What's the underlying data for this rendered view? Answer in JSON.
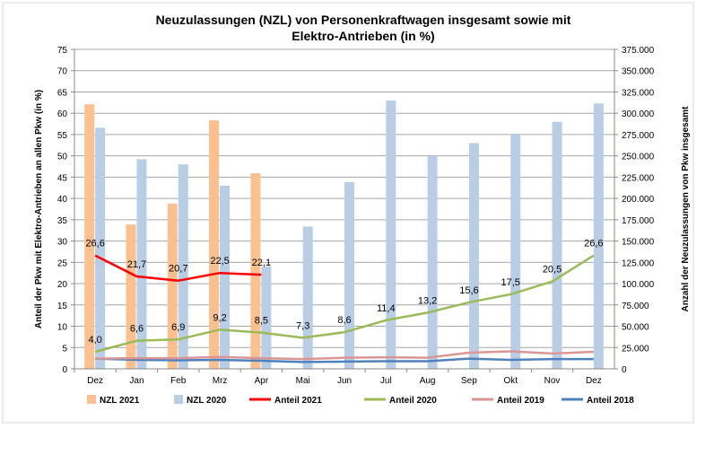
{
  "chart_data": {
    "type": "bar+line",
    "title": "Neuzulassungen (NZL) von Personenkraftwagen insgesamt sowie mit Elektro-Antrieben (in %)",
    "title_lines": [
      "Neuzulassungen (NZL) von Personenkraftwagen insgesamt sowie mit",
      "Elektro-Antrieben (in %)"
    ],
    "ylabel_left": "Anteil der Pkw mit Elektro-Antrieben an allen Pkw (in %)",
    "ylabel_right": "Anzahl der Neuzulassungen von Pkw insgesamt",
    "ylim_left": [
      0,
      75
    ],
    "ylim_right": [
      0,
      375000
    ],
    "yticks_left": [
      "0",
      "5",
      "10",
      "15",
      "20",
      "25",
      "30",
      "35",
      "40",
      "45",
      "50",
      "55",
      "60",
      "65",
      "70",
      "75"
    ],
    "yticks_right": [
      "0",
      "25.000",
      "50.000",
      "75.000",
      "100.000",
      "125.000",
      "150.000",
      "175.000",
      "200.000",
      "225.000",
      "250.000",
      "275.000",
      "300.000",
      "325.000",
      "350.000",
      "375.000"
    ],
    "categories": [
      "Dez",
      "Jan",
      "Feb",
      "Mrz",
      "Apr",
      "Mai",
      "Jun",
      "Jul",
      "Aug",
      "Sep",
      "Okt",
      "Nov",
      "Dez"
    ],
    "grid": true,
    "legend_position": "bottom",
    "bars": [
      {
        "name": "NZL 2021",
        "color": "#fac090",
        "values": [
          310500,
          169500,
          194000,
          291700,
          229600,
          null,
          null,
          null,
          null,
          null,
          null,
          null,
          null
        ]
      },
      {
        "name": "NZL 2020",
        "color": "#b9cde5",
        "values": [
          283000,
          246000,
          240000,
          215000,
          120000,
          167000,
          219000,
          315000,
          250000,
          265000,
          275000,
          290000,
          311500
        ]
      }
    ],
    "lines": [
      {
        "name": "Anteil 2021",
        "color": "#ff0000",
        "values": [
          26.6,
          21.7,
          20.7,
          22.5,
          22.1,
          null,
          null,
          null,
          null,
          null,
          null,
          null,
          null
        ],
        "labels": [
          "26,6",
          "21,7",
          "20,7",
          "22,5",
          "22,1"
        ]
      },
      {
        "name": "Anteil 2020",
        "color": "#9bbb59",
        "values": [
          4.0,
          6.6,
          6.9,
          9.2,
          8.5,
          7.3,
          8.6,
          11.4,
          13.2,
          15.6,
          17.5,
          20.5,
          26.6
        ],
        "labels": [
          "4,0",
          "6,6",
          "6,9",
          "9,2",
          "8,5",
          "7,3",
          "8,6",
          "11,4",
          "13,2",
          "15,6",
          "17,5",
          "20,5",
          "26,6"
        ]
      },
      {
        "name": "Anteil 2019",
        "color": "#d99694",
        "values": [
          2.4,
          2.5,
          2.5,
          2.8,
          2.5,
          2.3,
          2.6,
          2.7,
          2.6,
          3.8,
          4.1,
          3.6,
          4.0
        ]
      },
      {
        "name": "Anteil 2018",
        "color": "#4f81bd",
        "values": [
          2.4,
          2.1,
          2.0,
          2.1,
          1.9,
          1.6,
          1.7,
          1.8,
          1.8,
          2.4,
          2.1,
          2.3,
          2.3
        ]
      }
    ]
  }
}
